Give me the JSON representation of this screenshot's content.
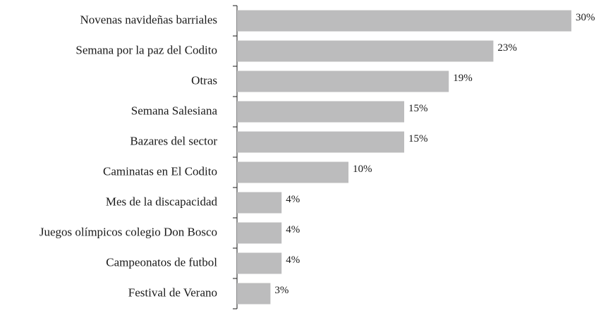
{
  "chart_data": {
    "type": "bar",
    "orientation": "horizontal",
    "categories": [
      "Novenas navideñas barriales",
      "Semana por la paz del Codito",
      "Otras",
      "Semana Salesiana",
      "Bazares del sector",
      "Caminatas en El Codito",
      "Mes de la discapacidad",
      "Juegos olímpicos colegio Don Bosco",
      "Campeonatos de futbol",
      "Festival de Verano"
    ],
    "values": [
      30,
      23,
      19,
      15,
      15,
      10,
      4,
      4,
      4,
      3
    ],
    "value_labels": [
      "30%",
      "23%",
      "19%",
      "15%",
      "15%",
      "10%",
      "4%",
      "4%",
      "4%",
      "3%"
    ],
    "color": "#bcbcbd",
    "xlim": [
      0,
      30
    ]
  }
}
